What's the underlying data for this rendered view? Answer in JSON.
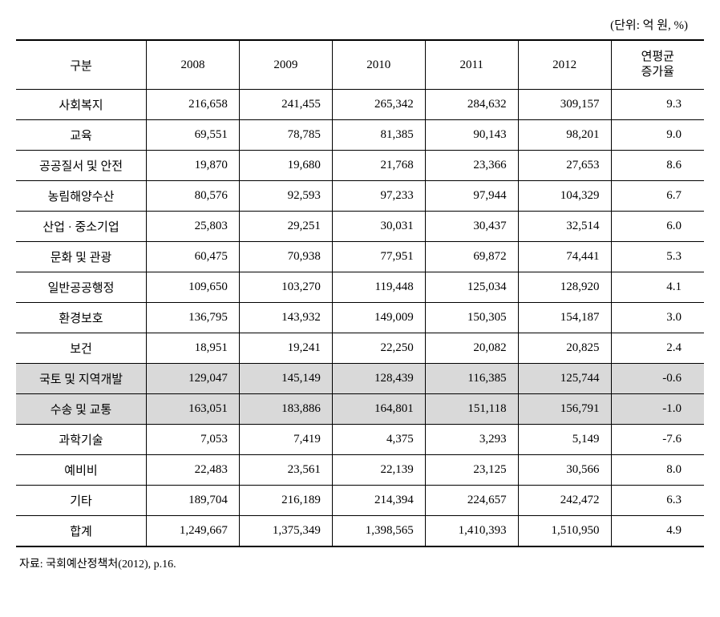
{
  "unit_label": "(단위: 억 원, %)",
  "columns": {
    "c0": "구분",
    "c1": "2008",
    "c2": "2009",
    "c3": "2010",
    "c4": "2011",
    "c5": "2012",
    "c6_line1": "연평균",
    "c6_line2": "증가율"
  },
  "rows": [
    {
      "label": "사회복지",
      "y2008": "216,658",
      "y2009": "241,455",
      "y2010": "265,342",
      "y2011": "284,632",
      "y2012": "309,157",
      "rate": "9.3",
      "highlight": false
    },
    {
      "label": "교육",
      "y2008": "69,551",
      "y2009": "78,785",
      "y2010": "81,385",
      "y2011": "90,143",
      "y2012": "98,201",
      "rate": "9.0",
      "highlight": false
    },
    {
      "label": "공공질서 및 안전",
      "y2008": "19,870",
      "y2009": "19,680",
      "y2010": "21,768",
      "y2011": "23,366",
      "y2012": "27,653",
      "rate": "8.6",
      "highlight": false
    },
    {
      "label": "농림해양수산",
      "y2008": "80,576",
      "y2009": "92,593",
      "y2010": "97,233",
      "y2011": "97,944",
      "y2012": "104,329",
      "rate": "6.7",
      "highlight": false
    },
    {
      "label": "산업 · 중소기업",
      "y2008": "25,803",
      "y2009": "29,251",
      "y2010": "30,031",
      "y2011": "30,437",
      "y2012": "32,514",
      "rate": "6.0",
      "highlight": false
    },
    {
      "label": "문화 및 관광",
      "y2008": "60,475",
      "y2009": "70,938",
      "y2010": "77,951",
      "y2011": "69,872",
      "y2012": "74,441",
      "rate": "5.3",
      "highlight": false
    },
    {
      "label": "일반공공행정",
      "y2008": "109,650",
      "y2009": "103,270",
      "y2010": "119,448",
      "y2011": "125,034",
      "y2012": "128,920",
      "rate": "4.1",
      "highlight": false
    },
    {
      "label": "환경보호",
      "y2008": "136,795",
      "y2009": "143,932",
      "y2010": "149,009",
      "y2011": "150,305",
      "y2012": "154,187",
      "rate": "3.0",
      "highlight": false
    },
    {
      "label": "보건",
      "y2008": "18,951",
      "y2009": "19,241",
      "y2010": "22,250",
      "y2011": "20,082",
      "y2012": "20,825",
      "rate": "2.4",
      "highlight": false
    },
    {
      "label": "국토 및 지역개발",
      "y2008": "129,047",
      "y2009": "145,149",
      "y2010": "128,439",
      "y2011": "116,385",
      "y2012": "125,744",
      "rate": "-0.6",
      "highlight": true
    },
    {
      "label": "수송 및 교통",
      "y2008": "163,051",
      "y2009": "183,886",
      "y2010": "164,801",
      "y2011": "151,118",
      "y2012": "156,791",
      "rate": "-1.0",
      "highlight": true
    },
    {
      "label": "과학기술",
      "y2008": "7,053",
      "y2009": "7,419",
      "y2010": "4,375",
      "y2011": "3,293",
      "y2012": "5,149",
      "rate": "-7.6",
      "highlight": false
    },
    {
      "label": "예비비",
      "y2008": "22,483",
      "y2009": "23,561",
      "y2010": "22,139",
      "y2011": "23,125",
      "y2012": "30,566",
      "rate": "8.0",
      "highlight": false
    },
    {
      "label": "기타",
      "y2008": "189,704",
      "y2009": "216,189",
      "y2010": "214,394",
      "y2011": "224,657",
      "y2012": "242,472",
      "rate": "6.3",
      "highlight": false
    },
    {
      "label": "합계",
      "y2008": "1,249,667",
      "y2009": "1,375,349",
      "y2010": "1,398,565",
      "y2011": "1,410,393",
      "y2012": "1,510,950",
      "rate": "4.9",
      "highlight": false
    }
  ],
  "source": "자료: 국회예산정책처(2012), p.16.",
  "style": {
    "highlight_bg": "#d9d9d9",
    "border_color": "#000000",
    "background": "#ffffff",
    "font_size_body": 15,
    "font_size_source": 14
  }
}
